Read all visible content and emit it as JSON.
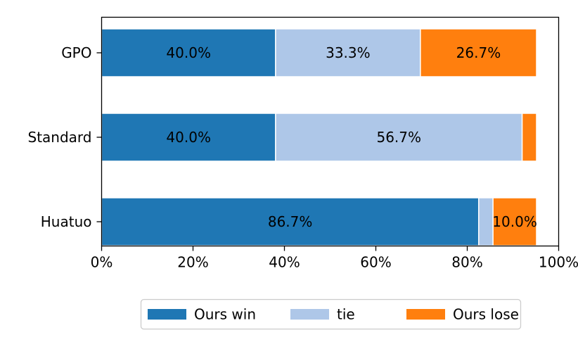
{
  "chart_data": {
    "type": "bar",
    "orientation": "horizontal",
    "stacked": true,
    "categories": [
      "GPO",
      "Standard",
      "Huatuo"
    ],
    "series": [
      {
        "name": "Ours win",
        "values": [
          40.0,
          40.0,
          86.7
        ],
        "color": "#1f77b4",
        "labels": [
          "40.0%",
          "40.0%",
          "86.7%"
        ]
      },
      {
        "name": "tie",
        "values": [
          33.3,
          56.7,
          3.3
        ],
        "color": "#aec7e8",
        "labels": [
          "33.3%",
          "56.7%",
          ""
        ]
      },
      {
        "name": "Ours lose",
        "values": [
          26.7,
          3.3,
          10.0
        ],
        "color": "#ff7f0e",
        "labels": [
          "26.7%",
          "",
          "10.0%"
        ]
      }
    ],
    "xlim": [
      0,
      100
    ],
    "xticks": [
      0,
      20,
      40,
      60,
      80,
      100
    ],
    "xtick_labels": [
      "0%",
      "20%",
      "40%",
      "60%",
      "80%",
      "100%"
    ],
    "title": "",
    "xlabel": "",
    "ylabel": "",
    "grid": false,
    "legend_position": "bottom"
  }
}
